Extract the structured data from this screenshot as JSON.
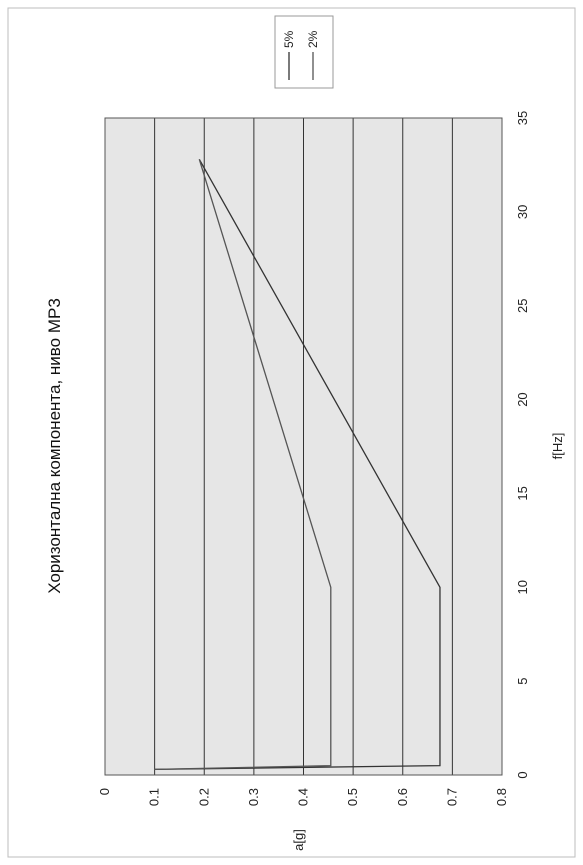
{
  "chart_data": {
    "type": "line",
    "title": "Хоризонтална компонента, ниво МР3",
    "xlabel": "f[Hz]",
    "ylabel": "a[g]",
    "xlim": [
      0,
      35
    ],
    "ylim": [
      0,
      0.8
    ],
    "x_ticks": [
      "0",
      "5",
      "10",
      "15",
      "20",
      "25",
      "30",
      "35"
    ],
    "y_ticks": [
      "0",
      "0.1",
      "0.2",
      "0.3",
      "0.4",
      "0.5",
      "0.6",
      "0.7",
      "0.8"
    ],
    "grid": true,
    "orientation": "rotated-90-counterclockwise",
    "legend_position": "top-right",
    "series": [
      {
        "name": "5%",
        "color": "#333333",
        "x": [
          0.3,
          0.5,
          10,
          32.8
        ],
        "y": [
          0.1,
          0.675,
          0.675,
          0.19
        ]
      },
      {
        "name": "2%",
        "color": "#555555",
        "x": [
          0.3,
          0.5,
          10,
          32.8
        ],
        "y": [
          0.1,
          0.455,
          0.455,
          0.19
        ]
      }
    ]
  }
}
